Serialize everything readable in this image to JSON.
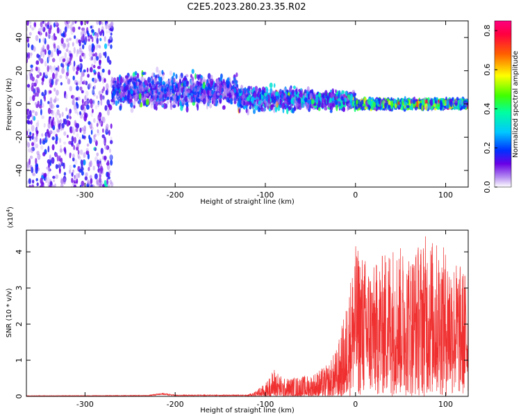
{
  "page": {
    "title": "C2E5.2023.280.23.35.R02"
  },
  "chart_data": [
    {
      "type": "heatmap",
      "xlabel": "Height of straight line (km)",
      "ylabel": "Frequency (Hz)",
      "xlim": [
        -365,
        125
      ],
      "ylim": [
        -50,
        50
      ],
      "x_ticks": [
        -300,
        -200,
        -100,
        0,
        100
      ],
      "y_ticks": [
        -40,
        -20,
        0,
        20,
        40
      ],
      "colorbar": {
        "label": "Normalized spectral amplitude",
        "range": [
          0,
          0.85
        ],
        "ticks": [
          0.0,
          0.2,
          0.4,
          0.6,
          0.8
        ],
        "colors": [
          "#ffffff",
          "#dcc6f7",
          "#9d5cf0",
          "#6a00e6",
          "#2a00d8",
          "#0030ff",
          "#00a0ff",
          "#00ffff",
          "#00ff80",
          "#00ff00",
          "#a0ff00",
          "#ffff00",
          "#ff9000",
          "#ff2020",
          "#ff0080",
          "#ff0060"
        ]
      },
      "bands": [
        {
          "x_range": [
            -365,
            -270
          ],
          "freq_center": 0,
          "freq_spread": 50,
          "amplitude": 0.15
        },
        {
          "x_range": [
            -270,
            -130
          ],
          "freq_center": 8,
          "freq_spread": 14,
          "amplitude": 0.2
        },
        {
          "x_range": [
            -130,
            -50
          ],
          "freq_center": 3,
          "freq_spread": 10,
          "amplitude": 0.28
        },
        {
          "x_range": [
            -50,
            0
          ],
          "freq_center": 2,
          "freq_spread": 8,
          "amplitude": 0.35
        },
        {
          "x_range": [
            0,
            125
          ],
          "freq_center": 0,
          "freq_spread": 4,
          "amplitude": 0.45
        }
      ]
    },
    {
      "type": "line",
      "xlabel": "Height of straight line (km)",
      "ylabel": "SNR (10 * v/v)",
      "y_multiplier": "(x10",
      "y_multiplier_exp": "4",
      "y_multiplier_close": ")",
      "xlim": [
        -365,
        125
      ],
      "ylim": [
        0,
        4.6
      ],
      "x_ticks": [
        -300,
        -200,
        -100,
        0,
        100
      ],
      "y_ticks": [
        0,
        1,
        2,
        3,
        4
      ],
      "color": "#f03030",
      "envelope": [
        {
          "x": -365,
          "y": 0.02
        },
        {
          "x": -230,
          "y": 0.03
        },
        {
          "x": -215,
          "y": 0.1
        },
        {
          "x": -200,
          "y": 0.04
        },
        {
          "x": -120,
          "y": 0.04
        },
        {
          "x": -100,
          "y": 0.35
        },
        {
          "x": -90,
          "y": 0.8
        },
        {
          "x": -80,
          "y": 0.5
        },
        {
          "x": -50,
          "y": 0.6
        },
        {
          "x": -30,
          "y": 0.9
        },
        {
          "x": -20,
          "y": 1.4
        },
        {
          "x": -10,
          "y": 2.6
        },
        {
          "x": 0,
          "y": 4.2
        },
        {
          "x": 20,
          "y": 3.6
        },
        {
          "x": 40,
          "y": 4.3
        },
        {
          "x": 60,
          "y": 4.0
        },
        {
          "x": 78,
          "y": 4.5
        },
        {
          "x": 100,
          "y": 4.1
        },
        {
          "x": 125,
          "y": 3.4
        }
      ]
    }
  ]
}
